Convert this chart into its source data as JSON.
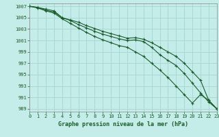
{
  "title": "Graphe pression niveau de la mer (hPa)",
  "background_color": "#c4ece8",
  "grid_color": "#a8d8d4",
  "line_color": "#1a5c2a",
  "xlim": [
    0,
    23
  ],
  "ylim": [
    988.5,
    1007.5
  ],
  "xticks": [
    0,
    1,
    2,
    3,
    4,
    5,
    6,
    7,
    8,
    9,
    10,
    11,
    12,
    13,
    14,
    15,
    16,
    17,
    18,
    19,
    20,
    21,
    22,
    23
  ],
  "yticks": [
    989,
    991,
    993,
    995,
    997,
    999,
    1001,
    1003,
    1005,
    1007
  ],
  "series": [
    [
      1007.0,
      1006.8,
      1006.5,
      1006.2,
      1005.0,
      1004.6,
      1004.2,
      1003.6,
      1003.1,
      1002.6,
      1002.2,
      1001.8,
      1001.4,
      1001.5,
      1001.2,
      1000.6,
      999.8,
      999.0,
      998.2,
      997.0,
      995.5,
      994.0,
      990.5,
      989.0
    ],
    [
      1007.0,
      1006.8,
      1006.3,
      1006.0,
      1005.0,
      1004.5,
      1003.8,
      1003.2,
      1002.6,
      1002.1,
      1001.7,
      1001.3,
      1001.0,
      1001.1,
      1000.8,
      999.8,
      998.5,
      997.5,
      996.6,
      995.2,
      993.5,
      991.8,
      990.2,
      989.0
    ],
    [
      1007.0,
      1006.7,
      1006.2,
      1005.8,
      1004.8,
      1004.0,
      1003.2,
      1002.4,
      1001.7,
      1001.1,
      1000.6,
      1000.1,
      999.8,
      999.0,
      998.2,
      997.0,
      995.8,
      994.5,
      993.0,
      991.5,
      990.0,
      991.5,
      990.5,
      989.0
    ]
  ]
}
